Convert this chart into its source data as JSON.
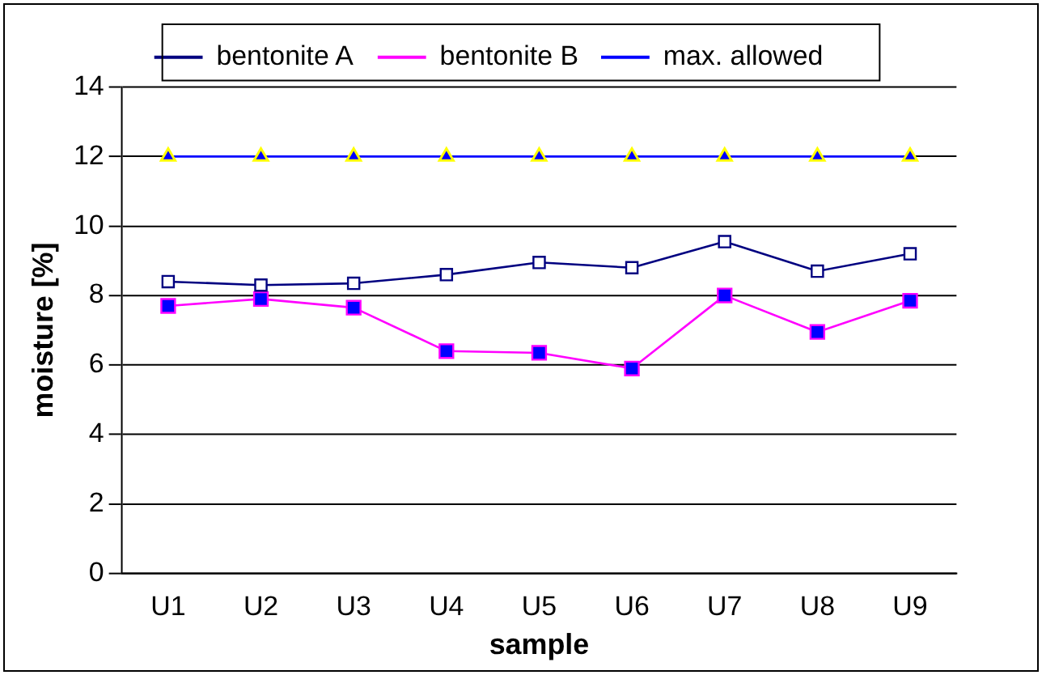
{
  "chart_data": {
    "type": "line",
    "xlabel": "sample",
    "ylabel": "moisture [%]",
    "categories": [
      "U1",
      "U2",
      "U3",
      "U4",
      "U5",
      "U6",
      "U7",
      "U8",
      "U9"
    ],
    "series": [
      {
        "name": "bentonite A",
        "color": "#000080",
        "marker": "square",
        "values": [
          8.4,
          8.3,
          8.35,
          8.6,
          8.95,
          8.8,
          9.55,
          8.7,
          9.2
        ]
      },
      {
        "name": "bentonite B",
        "color": "#ff00ff",
        "marker": "square",
        "values": [
          7.7,
          7.9,
          7.65,
          6.4,
          6.35,
          5.9,
          8.0,
          6.95,
          7.85
        ]
      },
      {
        "name": "max. allowed",
        "color": "#0000ff",
        "marker": "triangle",
        "values": [
          12,
          12,
          12,
          12,
          12,
          12,
          12,
          12,
          12
        ]
      }
    ],
    "ylim": [
      0,
      14
    ],
    "yticks": [
      0,
      2,
      4,
      6,
      8,
      10,
      12,
      14
    ],
    "grid": "y",
    "legend": "top",
    "line_style": "solid"
  }
}
